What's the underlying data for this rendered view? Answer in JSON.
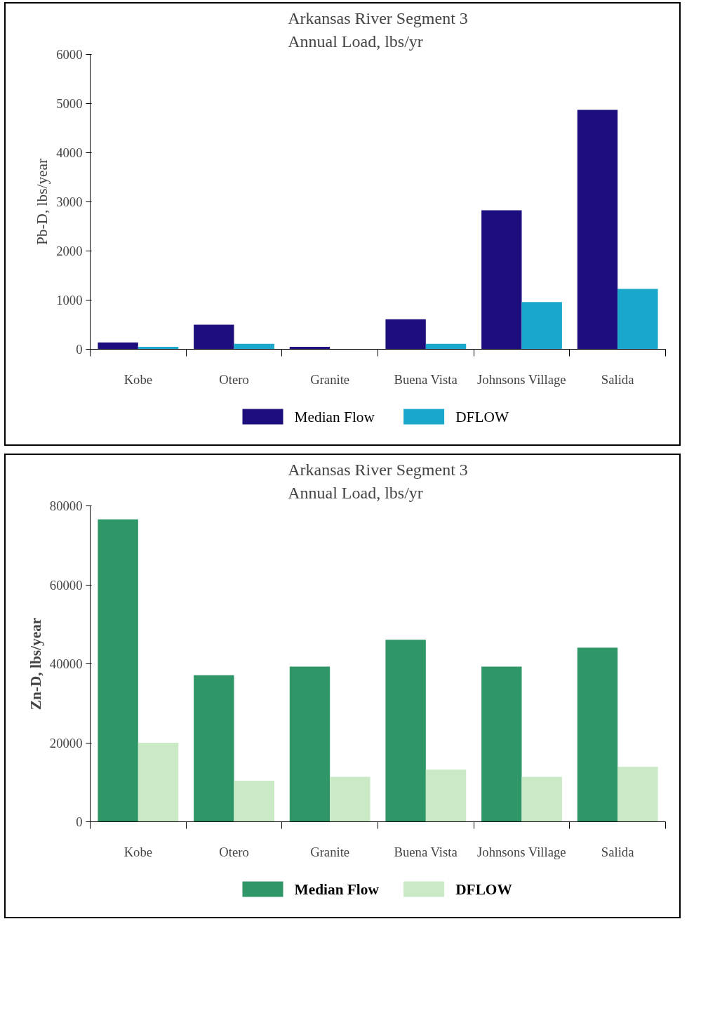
{
  "chart_data": [
    {
      "type": "bar",
      "title": "Arkansas River Segment 3\nAnnual Load, lbs/yr",
      "ylabel": "Pb-D, lbs/year",
      "categories": [
        "Kobe",
        "Otero",
        "Granite",
        "Buena Vista",
        "Johnsons Village",
        "Salida"
      ],
      "series": [
        {
          "name": "Median Flow",
          "color": "#1c0f7d",
          "values": [
            140,
            500,
            50,
            610,
            2830,
            4870
          ]
        },
        {
          "name": "DFLOW",
          "color": "#19a8cb",
          "values": [
            50,
            110,
            0,
            110,
            960,
            1230
          ]
        }
      ],
      "ylim": [
        0,
        6000
      ],
      "yticks": [
        0,
        1000,
        2000,
        3000,
        4000,
        5000,
        6000
      ],
      "grid": false,
      "legend": "bottom"
    },
    {
      "type": "bar",
      "title": "Arkansas River Segment 3\nAnnual Load, lbs/yr",
      "ylabel": "Zn-D, lbs/year",
      "categories": [
        "Kobe",
        "Otero",
        "Granite",
        "Buena Vista",
        "Johnsons Village",
        "Salida"
      ],
      "series": [
        {
          "name": "Median Flow",
          "color": "#2f9667",
          "values": [
            76600,
            37100,
            39300,
            46100,
            39300,
            44100
          ]
        },
        {
          "name": "DFLOW",
          "color": "#c9eac5",
          "values": [
            20000,
            10400,
            11400,
            13200,
            11400,
            13900
          ]
        }
      ],
      "ylim": [
        0,
        80000
      ],
      "yticks": [
        0,
        20000,
        40000,
        60000,
        80000
      ],
      "grid": false,
      "legend": "bottom"
    }
  ]
}
